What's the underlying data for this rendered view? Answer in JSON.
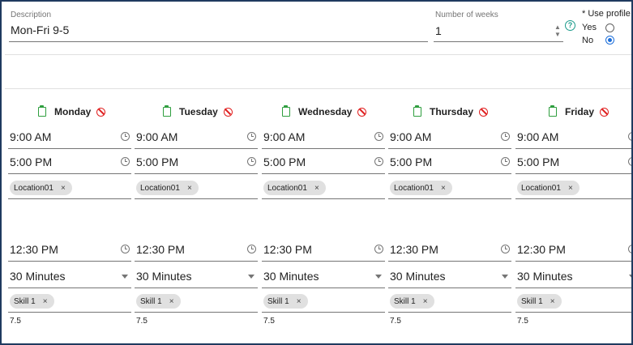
{
  "header": {
    "description_label": "Description",
    "description_value": "Mon-Fri 9-5",
    "weeks_label": "Number of weeks",
    "weeks_value": "1",
    "use_profile_label": "* Use profile",
    "yes_label": "Yes",
    "no_label": "No",
    "use_profile_selected": "No",
    "help_glyph": "?",
    "spinner_up": "▲",
    "spinner_down": "▼"
  },
  "days": [
    {
      "name": "Monday",
      "start": "9:00 AM",
      "end": "5:00 PM",
      "location": "Location01",
      "break_time": "12:30 PM",
      "break_length": "30 Minutes",
      "skill": "Skill 1",
      "hours": "7.5"
    },
    {
      "name": "Tuesday",
      "start": "9:00 AM",
      "end": "5:00 PM",
      "location": "Location01",
      "break_time": "12:30 PM",
      "break_length": "30 Minutes",
      "skill": "Skill 1",
      "hours": "7.5"
    },
    {
      "name": "Wednesday",
      "start": "9:00 AM",
      "end": "5:00 PM",
      "location": "Location01",
      "break_time": "12:30 PM",
      "break_length": "30 Minutes",
      "skill": "Skill 1",
      "hours": "7.5"
    },
    {
      "name": "Thursday",
      "start": "9:00 AM",
      "end": "5:00 PM",
      "location": "Location01",
      "break_time": "12:30 PM",
      "break_length": "30 Minutes",
      "skill": "Skill 1",
      "hours": "7.5"
    },
    {
      "name": "Friday",
      "start": "9:00 AM",
      "end": "5:00 PM",
      "location": "Location01",
      "break_time": "12:30 PM",
      "break_length": "30 Minutes",
      "skill": "Skill 1",
      "hours": "7.5"
    }
  ],
  "chip_remove_glyph": "×",
  "colors": {
    "frame": "#1f3a5f",
    "accent": "#1e6fd9",
    "enabled_icon": "#2e9e3e",
    "disable_icon": "#e02020",
    "help_icon": "#1a9a8a",
    "chip_bg": "#e0e0e0"
  }
}
